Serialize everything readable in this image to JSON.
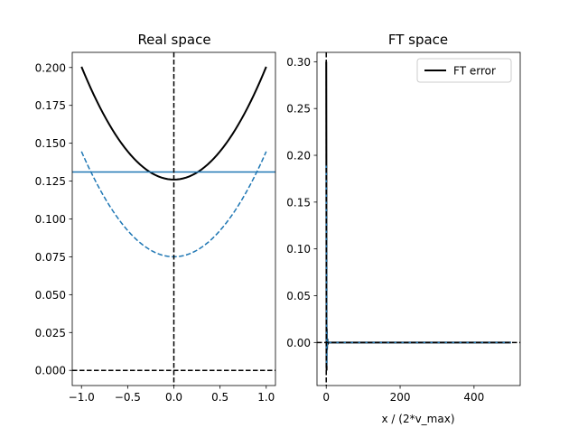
{
  "chart_data": [
    {
      "type": "line",
      "title": "Real space",
      "xlabel": "",
      "ylabel": "",
      "xlim": [
        -1.1,
        1.1
      ],
      "ylim": [
        -0.01,
        0.21
      ],
      "xticks": [
        -1.0,
        -0.5,
        0.0,
        0.5,
        1.0
      ],
      "xtick_labels": [
        "−1.0",
        "−0.5",
        "0.0",
        "0.5",
        "1.0"
      ],
      "yticks": [
        0.0,
        0.025,
        0.05,
        0.075,
        0.1,
        0.125,
        0.15,
        0.175,
        0.2
      ],
      "ytick_labels": [
        "0.000",
        "0.025",
        "0.050",
        "0.075",
        "0.100",
        "0.125",
        "0.150",
        "0.175",
        "0.200"
      ],
      "grid": false,
      "series": [
        {
          "style": "solid",
          "color": "#000000",
          "x": [
            -1.0,
            -0.75,
            -0.5,
            -0.25,
            0.0,
            0.25,
            0.5,
            0.75,
            1.0
          ],
          "y": [
            0.2005,
            0.1674,
            0.1444,
            0.1305,
            0.126,
            0.1305,
            0.1444,
            0.1674,
            0.2005
          ]
        },
        {
          "style": "dashed",
          "color": "#1f77b4",
          "x": [
            -1.0,
            -0.75,
            -0.5,
            -0.25,
            0.0,
            0.25,
            0.5,
            0.75,
            1.0
          ],
          "y": [
            0.1445,
            0.1114,
            0.0885,
            0.0748,
            0.075,
            0.0748,
            0.0885,
            0.1114,
            0.1445
          ]
        },
        {
          "style": "solid",
          "color": "#1f77b4",
          "hline": 0.131
        },
        {
          "style": "dashed",
          "color": "#000000",
          "hline": 0.0
        },
        {
          "style": "dashed",
          "color": "#000000",
          "vline": 0.0
        }
      ]
    },
    {
      "type": "line",
      "title": "FT space",
      "xlabel": "x / (2*v_max)",
      "ylabel": "",
      "xlim": [
        -25,
        525
      ],
      "ylim": [
        -0.046,
        0.31
      ],
      "xticks": [
        0,
        200,
        400
      ],
      "xtick_labels": [
        "0",
        "200",
        "400"
      ],
      "yticks": [
        0.0,
        0.05,
        0.1,
        0.15,
        0.2,
        0.25,
        0.3
      ],
      "ytick_labels": [
        "0.00",
        "0.05",
        "0.10",
        "0.15",
        "0.20",
        "0.25",
        "0.30"
      ],
      "grid": false,
      "legend": {
        "position": "top-right",
        "entries": [
          "FT error"
        ]
      },
      "series": [
        {
          "name": "FT error",
          "style": "solid",
          "color": "#000000",
          "x": [
            0,
            0.5,
            1,
            1.5,
            2,
            3,
            4,
            5,
            10,
            500
          ],
          "y": [
            0.3,
            0.15,
            -0.03,
            0.015,
            -0.008,
            0.004,
            -0.002,
            0.0,
            0.0,
            0.0
          ]
        },
        {
          "style": "solid",
          "color": "#1f77b4",
          "x": [
            0,
            0.5,
            1,
            1.5,
            2,
            3,
            4,
            5,
            10,
            500
          ],
          "y": [
            0.19,
            0.1,
            -0.025,
            0.01,
            -0.005,
            0.002,
            0.0,
            0.0,
            0.0,
            0.0
          ]
        },
        {
          "style": "dashed",
          "color": "#000000",
          "hline": 0.0
        },
        {
          "style": "dashed",
          "color": "#000000",
          "vline": 0.0
        }
      ]
    }
  ]
}
